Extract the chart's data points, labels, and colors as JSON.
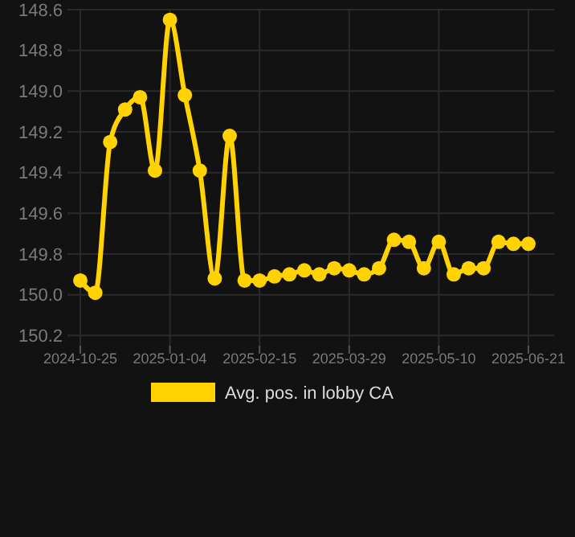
{
  "chart_data": {
    "type": "line",
    "categories": [
      "2024-10-25",
      null,
      null,
      null,
      null,
      null,
      "2025-01-04",
      null,
      null,
      null,
      null,
      null,
      "2025-02-15",
      null,
      null,
      null,
      null,
      null,
      "2025-03-29",
      null,
      null,
      null,
      null,
      null,
      "2025-05-10",
      null,
      null,
      null,
      null,
      null,
      "2025-06-21"
    ],
    "series": [
      {
        "name": "Avg. pos. in lobby CA",
        "color": "#ffd200",
        "values": [
          149.93,
          149.99,
          149.25,
          149.09,
          149.03,
          149.39,
          148.65,
          149.02,
          149.39,
          149.92,
          149.22,
          149.93,
          149.93,
          149.91,
          149.9,
          149.88,
          149.9,
          149.87,
          149.88,
          149.9,
          149.87,
          149.73,
          149.74,
          149.87,
          149.74,
          149.9,
          149.87,
          149.87,
          149.74,
          149.75,
          149.75
        ]
      }
    ],
    "ylim": [
      150.25,
      148.6
    ],
    "yticks": [
      148.6,
      148.8,
      {
        "value": 149,
        "label": "149.0"
      },
      149.2,
      149.4,
      149.6,
      149.8,
      {
        "value": 150,
        "label": "150.0"
      },
      150.2
    ],
    "grid": true,
    "legend": "bottom",
    "marker": "circle"
  }
}
